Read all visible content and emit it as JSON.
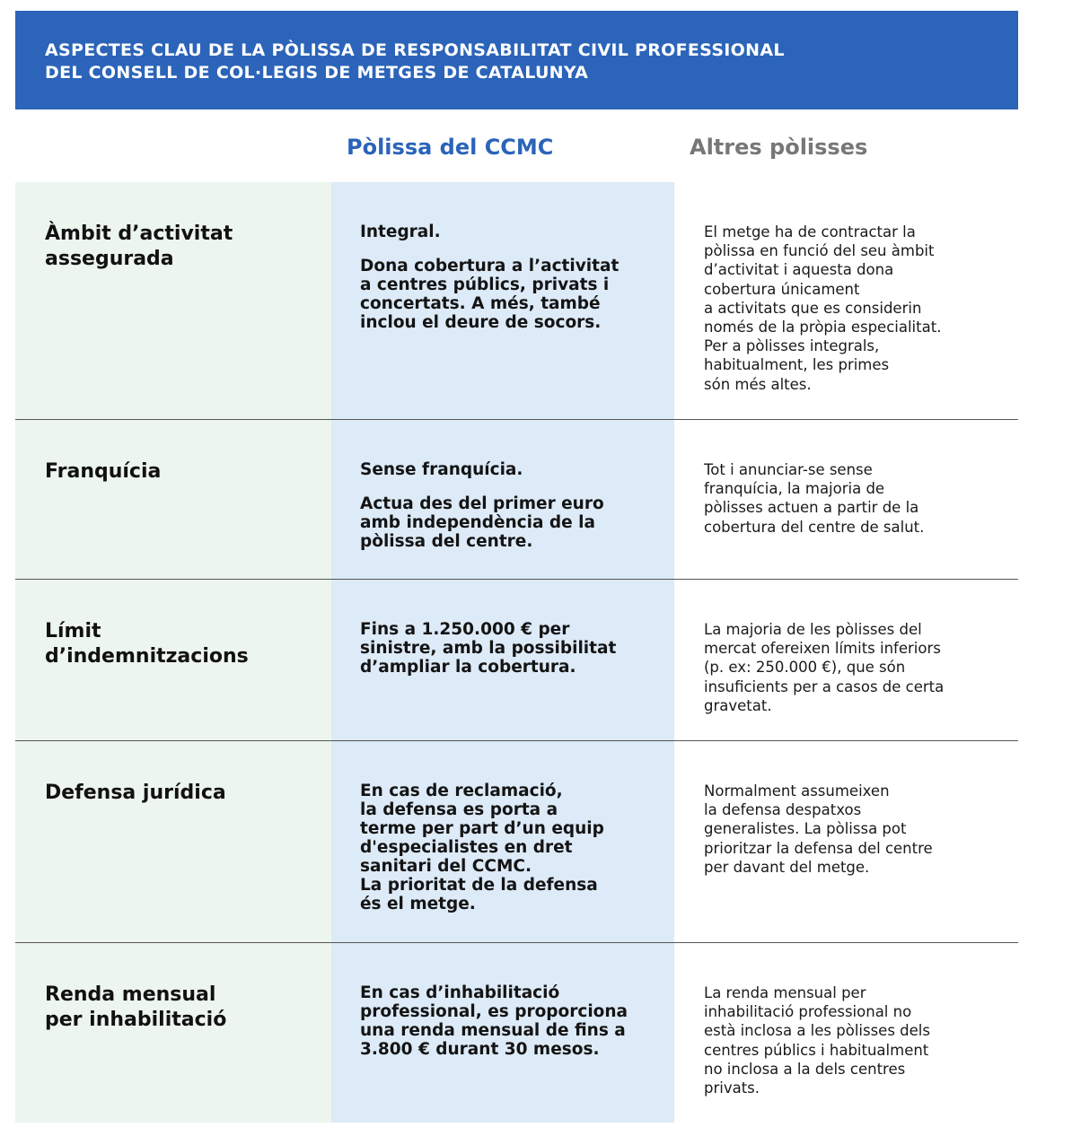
{
  "header": {
    "title_lines": [
      "ASPECTES CLAU DE LA PÒLISSA DE RESPONSABILITAT CIVIL PROFESSIONAL",
      "DEL CONSELL DE COL·LEGIS DE METGES DE CATALUNYA"
    ]
  },
  "columns": {
    "ccmc": "Pòlissa del CCMC",
    "other": "Altres pòlisses"
  },
  "colors": {
    "header_bg": "#2b64b9",
    "ccmc_column_bg": "#ddeaf7",
    "label_column_bg": "#edf5ef",
    "other_heading": "#777777"
  },
  "rows": [
    {
      "label": [
        "Àmbit d’activitat",
        "assegurada"
      ],
      "ccmc": [
        [
          "Integral."
        ],
        [
          "Dona cobertura a l’activitat",
          "a centres públics, privats i",
          "concertats. A més, també",
          "inclou el deure de socors."
        ]
      ],
      "other": [
        [
          "El metge ha de contractar la",
          "pòlissa en funció del seu àmbit",
          "d’activitat i aquesta dona",
          "cobertura únicament",
          "a activitats que es considerin",
          "només de la pròpia especialitat.",
          "Per a pòlisses integrals,",
          "habitualment, les primes",
          "són més altes."
        ]
      ]
    },
    {
      "label": [
        "Franquícia"
      ],
      "ccmc": [
        [
          "Sense franquícia."
        ],
        [
          "Actua des del primer euro",
          "amb independència de la",
          "pòlissa del centre."
        ]
      ],
      "other": [
        [
          "Tot i anunciar-se sense",
          "franquícia, la majoria de",
          "pòlisses actuen a partir de la",
          "cobertura del centre de salut."
        ]
      ]
    },
    {
      "label": [
        "Límit",
        "d’indemnitzacions"
      ],
      "ccmc": [
        [
          "Fins a 1.250.000 € per",
          "sinistre, amb la possibilitat",
          "d’ampliar la cobertura."
        ]
      ],
      "other": [
        [
          "La majoria de les pòlisses del",
          "mercat ofereixen límits inferiors",
          "(p. ex: 250.000 €), que són",
          "insuficients per a casos de certa",
          "gravetat."
        ]
      ]
    },
    {
      "label": [
        "Defensa jurídica"
      ],
      "ccmc": [
        [
          "En cas de reclamació,",
          "la defensa es porta a",
          "terme per part d’un equip",
          "d'especialistes en dret",
          "sanitari del CCMC.",
          "La prioritat de la defensa",
          "és el metge."
        ]
      ],
      "other": [
        [
          "Normalment assumeixen",
          "la defensa despatxos",
          "generalistes. La pòlissa pot",
          "prioritzar la defensa del centre",
          "per davant del metge."
        ]
      ]
    },
    {
      "label": [
        "Renda mensual",
        "per inhabilitació"
      ],
      "ccmc": [
        [
          "En cas d’inhabilitació",
          "professional, es proporciona",
          "una renda mensual de fins a",
          "3.800 € durant 30 mesos."
        ]
      ],
      "other": [
        [
          "La renda mensual per",
          "inhabilitació professional no",
          "està inclosa a les pòlisses dels",
          "centres públics i habitualment",
          "no inclosa a la dels centres",
          "privats."
        ]
      ]
    }
  ]
}
